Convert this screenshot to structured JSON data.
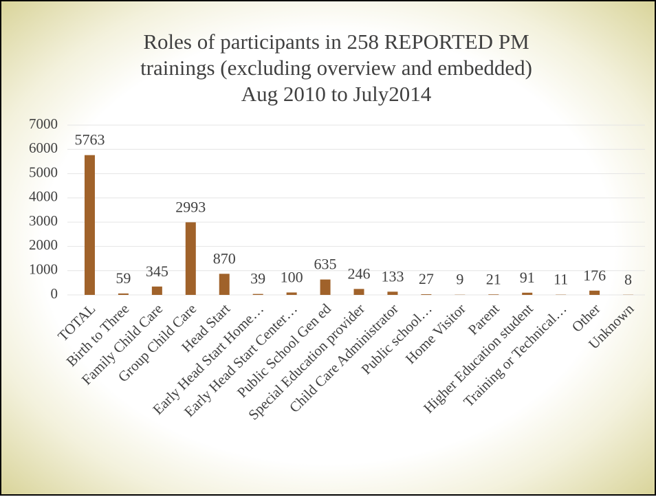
{
  "chart_data": {
    "type": "bar",
    "title": [
      "Roles of participants in 258 REPORTED PM",
      "trainings (excluding overview and embedded)",
      "Aug 2010 to July2014"
    ],
    "categories": [
      "TOTAL",
      "Birth to Three",
      "Family Child Care",
      "Group Child Care",
      "Head Start",
      "Early Head Start Home…",
      "Early Head Start Center…",
      "Public School Gen ed",
      "Special Education provider",
      "Child Care Administrator",
      "Public school…",
      "Home Visitor",
      "Parent",
      "Higher Education student",
      "Training or Technical…",
      "Other",
      "Unknown"
    ],
    "values": [
      5763,
      59,
      345,
      2993,
      870,
      39,
      100,
      635,
      246,
      133,
      27,
      9,
      21,
      91,
      11,
      176,
      8
    ],
    "color": "#a0622a",
    "ylim": [
      0,
      7000
    ],
    "yticks": [
      0,
      1000,
      2000,
      3000,
      4000,
      5000,
      6000,
      7000
    ],
    "grid": true
  }
}
